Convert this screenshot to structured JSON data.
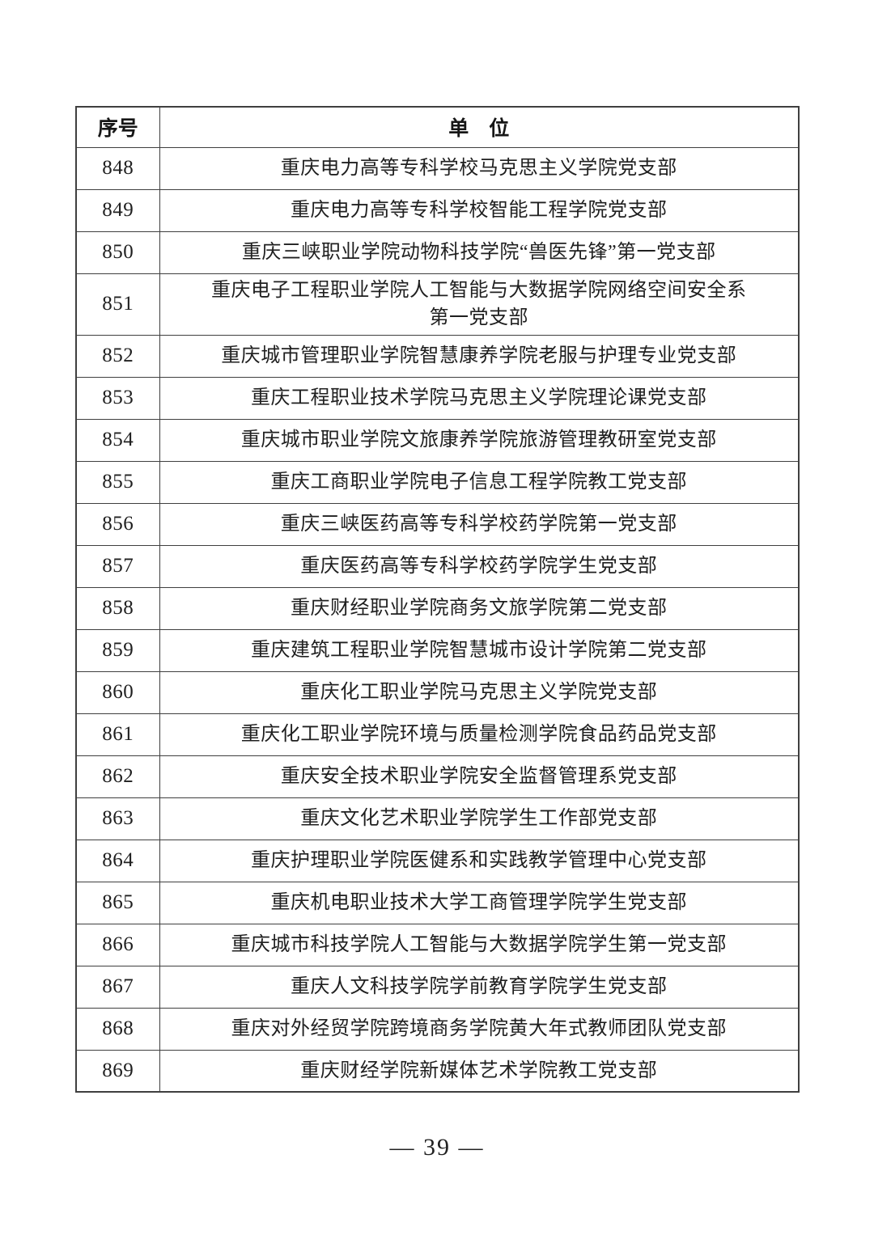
{
  "page": {
    "footer_page_number": "— 39 —"
  },
  "table": {
    "header": {
      "index_label": "序号",
      "unit_label": "单　位"
    },
    "rows": [
      {
        "no": "848",
        "unit": "重庆电力高等专科学校马克思主义学院党支部"
      },
      {
        "no": "849",
        "unit": "重庆电力高等专科学校智能工程学院党支部"
      },
      {
        "no": "850",
        "unit": "重庆三峡职业学院动物科技学院“兽医先锋”第一党支部"
      },
      {
        "no": "851",
        "unit": "重庆电子工程职业学院人工智能与大数据学院网络空间安全系\n第一党支部"
      },
      {
        "no": "852",
        "unit": "重庆城市管理职业学院智慧康养学院老服与护理专业党支部"
      },
      {
        "no": "853",
        "unit": "重庆工程职业技术学院马克思主义学院理论课党支部"
      },
      {
        "no": "854",
        "unit": "重庆城市职业学院文旅康养学院旅游管理教研室党支部"
      },
      {
        "no": "855",
        "unit": "重庆工商职业学院电子信息工程学院教工党支部"
      },
      {
        "no": "856",
        "unit": "重庆三峡医药高等专科学校药学院第一党支部"
      },
      {
        "no": "857",
        "unit": "重庆医药高等专科学校药学院学生党支部"
      },
      {
        "no": "858",
        "unit": "重庆财经职业学院商务文旅学院第二党支部"
      },
      {
        "no": "859",
        "unit": "重庆建筑工程职业学院智慧城市设计学院第二党支部"
      },
      {
        "no": "860",
        "unit": "重庆化工职业学院马克思主义学院党支部"
      },
      {
        "no": "861",
        "unit": "重庆化工职业学院环境与质量检测学院食品药品党支部"
      },
      {
        "no": "862",
        "unit": "重庆安全技术职业学院安全监督管理系党支部"
      },
      {
        "no": "863",
        "unit": "重庆文化艺术职业学院学生工作部党支部"
      },
      {
        "no": "864",
        "unit": "重庆护理职业学院医健系和实践教学管理中心党支部"
      },
      {
        "no": "865",
        "unit": "重庆机电职业技术大学工商管理学院学生党支部"
      },
      {
        "no": "866",
        "unit": "重庆城市科技学院人工智能与大数据学院学生第一党支部"
      },
      {
        "no": "867",
        "unit": "重庆人文科技学院学前教育学院学生党支部"
      },
      {
        "no": "868",
        "unit": "重庆对外经贸学院跨境商务学院黄大年式教师团队党支部"
      },
      {
        "no": "869",
        "unit": "重庆财经学院新媒体艺术学院教工党支部"
      }
    ]
  }
}
